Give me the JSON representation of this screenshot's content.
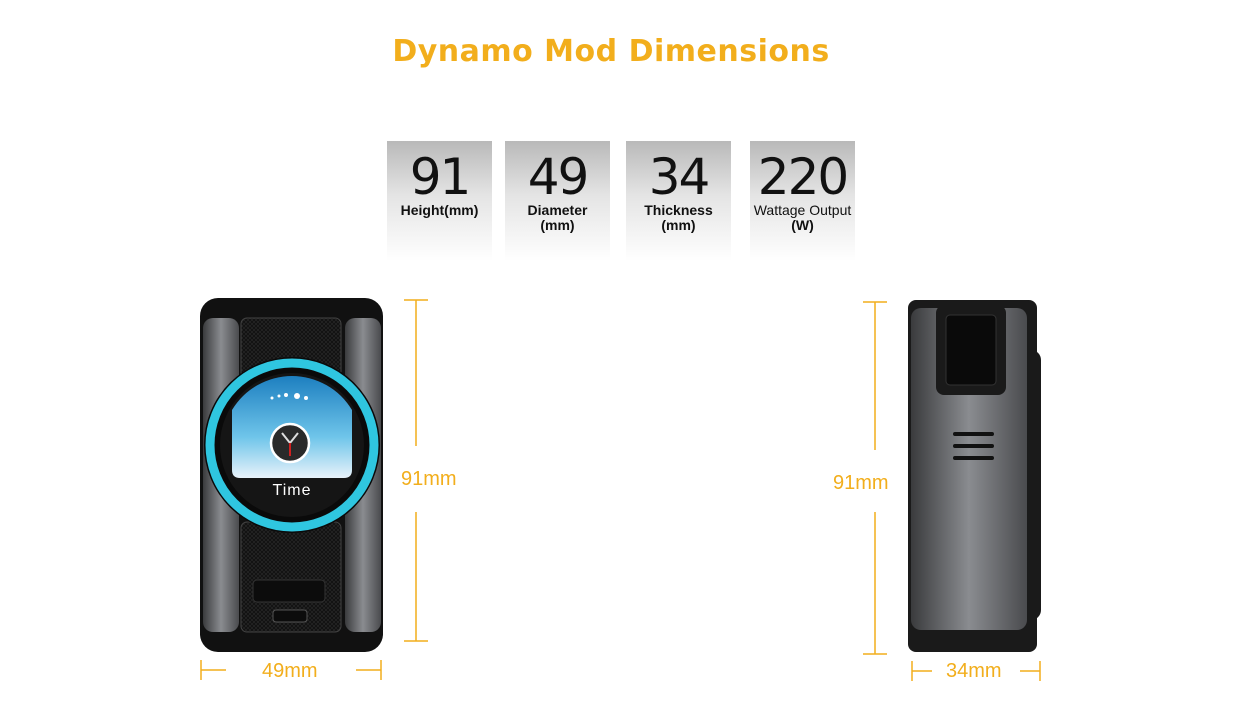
{
  "title": "Dynamo Mod Dimensions",
  "specs": [
    {
      "value": "91",
      "label_line1": "Height(mm)",
      "label_line2": ""
    },
    {
      "value": "49",
      "label_line1": "Diameter",
      "label_line2": "(mm)"
    },
    {
      "value": "34",
      "label_line1": "Thickness",
      "label_line2": "(mm)"
    },
    {
      "value": "220",
      "label_line1": "Wattage Output",
      "label_line2": "(W)"
    }
  ],
  "front_view": {
    "screen_label": "Time",
    "height_label": "91mm",
    "width_label": "49mm"
  },
  "side_view": {
    "height_label": "91mm",
    "thickness_label": "34mm"
  },
  "colors": {
    "accent": "#f2ae1c",
    "screen_ring": "#2fc6e0"
  }
}
